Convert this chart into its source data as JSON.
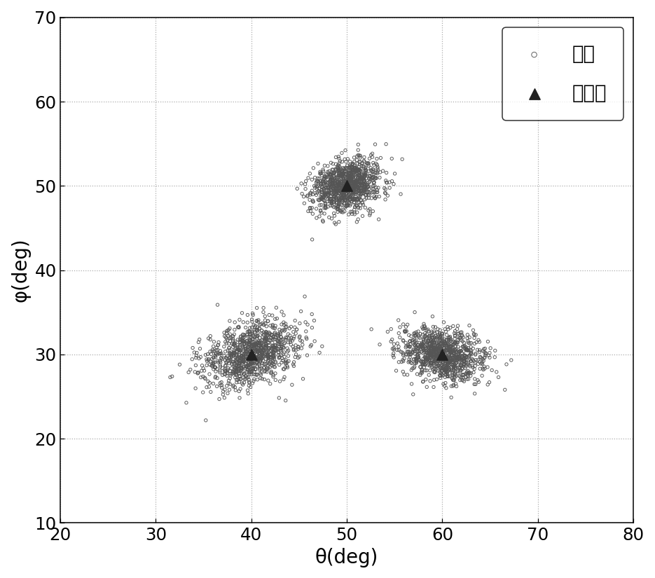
{
  "title": "",
  "xlabel": "θ(deg)",
  "ylabel": "φ(deg)",
  "xlim": [
    20,
    80
  ],
  "ylim": [
    10,
    70
  ],
  "xticks": [
    20,
    30,
    40,
    50,
    60,
    70,
    80
  ],
  "yticks": [
    10,
    20,
    30,
    40,
    50,
    60,
    70
  ],
  "sources": [
    {
      "theta": 40,
      "phi": 30,
      "std_theta": 2.5,
      "std_phi": 2.0,
      "corr": 0.35
    },
    {
      "theta": 50,
      "phi": 50,
      "std_theta": 1.8,
      "std_phi": 1.6,
      "corr": 0.25
    },
    {
      "theta": 60,
      "phi": 30,
      "std_theta": 2.2,
      "std_phi": 1.6,
      "corr": -0.25
    }
  ],
  "n_scatter": 1000,
  "scatter_color": "#555555",
  "scatter_marker": "o",
  "scatter_size": 8,
  "scatter_linewidth": 0.6,
  "true_color": "#222222",
  "true_marker": "^",
  "true_size": 100,
  "legend_scatter": "散点",
  "legend_true": "真实値",
  "grid_color": "#aaaaaa",
  "grid_style": ":",
  "grid_linewidth": 0.8,
  "font_size": 18,
  "tick_font_size": 16,
  "figsize": [
    8.5,
    7.5
  ],
  "dpi": 110
}
